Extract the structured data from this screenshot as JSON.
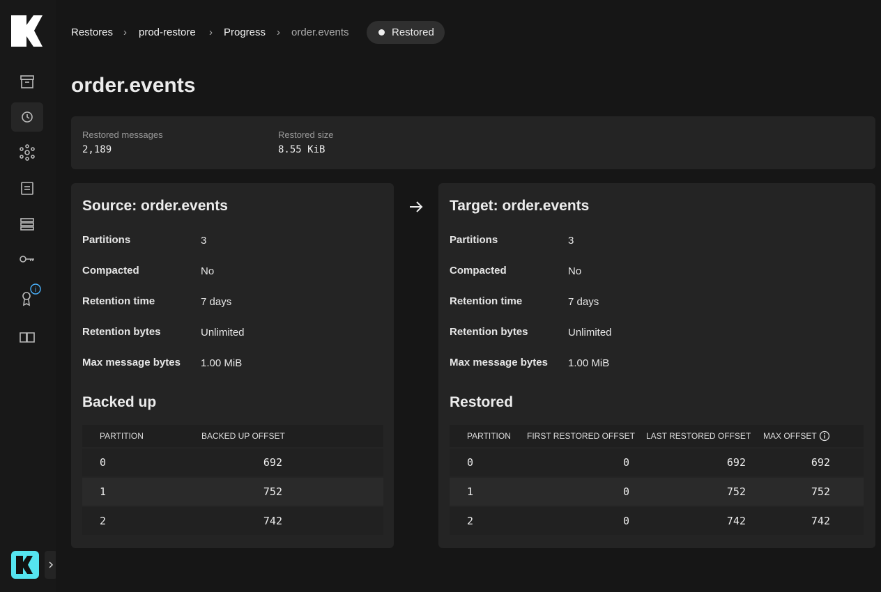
{
  "breadcrumb": [
    "Restores",
    "prod-restore",
    "Progress",
    "order.events"
  ],
  "status": "Restored",
  "title": "order.events",
  "stats": [
    {
      "label": "Restored messages",
      "value": "2,189"
    },
    {
      "label": "Restored size",
      "value": "8.55 KiB"
    }
  ],
  "source": {
    "title": "Source: order.events",
    "properties": [
      {
        "label": "Partitions",
        "value": "3"
      },
      {
        "label": "Compacted",
        "value": "No"
      },
      {
        "label": "Retention time",
        "value": "7 days"
      },
      {
        "label": "Retention bytes",
        "value": "Unlimited"
      },
      {
        "label": "Max message bytes",
        "value": "1.00 MiB"
      }
    ],
    "table_title": "Backed up",
    "table": {
      "columns": [
        "PARTITION",
        "BACKED UP OFFSET"
      ],
      "rows": [
        [
          "0",
          "692"
        ],
        [
          "1",
          "752"
        ],
        [
          "2",
          "742"
        ]
      ]
    }
  },
  "target": {
    "title": "Target: order.events",
    "properties": [
      {
        "label": "Partitions",
        "value": "3"
      },
      {
        "label": "Compacted",
        "value": "No"
      },
      {
        "label": "Retention time",
        "value": "7 days"
      },
      {
        "label": "Retention bytes",
        "value": "Unlimited"
      },
      {
        "label": "Max message bytes",
        "value": "1.00 MiB"
      }
    ],
    "table_title": "Restored",
    "table": {
      "columns": [
        "PARTITION",
        "FIRST RESTORED OFFSET",
        "LAST RESTORED OFFSET",
        "MAX OFFSET"
      ],
      "rows": [
        [
          "0",
          "0",
          "692",
          "692"
        ],
        [
          "1",
          "0",
          "752",
          "752"
        ],
        [
          "2",
          "0",
          "742",
          "742"
        ]
      ]
    }
  }
}
